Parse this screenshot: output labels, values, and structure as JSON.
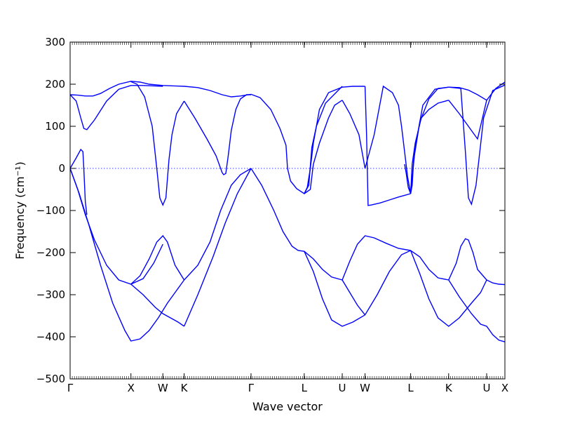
{
  "chart_data": {
    "type": "line",
    "title": "",
    "xlabel": "Wave vector",
    "ylabel": "Frequency (cm⁻¹)",
    "ylim": [
      -500,
      300
    ],
    "xlim": [
      0,
      14.3
    ],
    "grid": false,
    "legend": "none",
    "colors": {
      "series": "#0000ff",
      "axes": "#000000",
      "zero_line": "#0000ff"
    },
    "y_ticks": [
      300,
      200,
      100,
      0,
      -100,
      -200,
      -300,
      -400,
      -500
    ],
    "y_tick_labels": [
      "300",
      "200",
      "100",
      "0",
      "−100",
      "−200",
      "−300",
      "−400",
      "−500"
    ],
    "high_symmetry_points": [
      {
        "label": "Γ",
        "x": 0
      },
      {
        "label": "X",
        "x": 2.0
      },
      {
        "label": "W",
        "x": 3.05
      },
      {
        "label": "K",
        "x": 3.75
      },
      {
        "label": "Γ",
        "x": 5.95
      },
      {
        "label": "L",
        "x": 7.7
      },
      {
        "label": "U",
        "x": 8.95
      },
      {
        "label": "W",
        "x": 9.7
      },
      {
        "label": "L",
        "x": 11.2
      },
      {
        "label": "K",
        "x": 12.45
      },
      {
        "label": "U",
        "x": 13.7
      },
      {
        "label": "X",
        "x": 14.3
      }
    ],
    "zero_reference": 0,
    "series": [
      {
        "x": [
          0,
          0.25,
          0.5,
          0.75,
          1.0,
          1.3,
          1.6,
          2.0,
          2.3,
          2.6,
          3.05,
          3.4,
          3.75,
          4.2,
          4.6,
          5.0,
          5.3,
          5.6,
          5.95
        ],
        "values": [
          175,
          174,
          172,
          172,
          178,
          190,
          200,
          207,
          205,
          200,
          197,
          196,
          195,
          192,
          185,
          175,
          170,
          172,
          176
        ]
      },
      {
        "x": [
          0,
          0.2,
          0.35,
          0.45,
          0.55,
          0.8,
          1.2,
          1.6,
          2.0,
          2.4,
          2.75,
          3.05
        ],
        "values": [
          175,
          160,
          120,
          95,
          92,
          115,
          160,
          188,
          197,
          197,
          196,
          195
        ]
      },
      {
        "x": [
          2.0,
          2.2,
          2.45,
          2.7,
          2.85,
          2.95,
          3.05,
          3.15,
          3.25,
          3.35,
          3.5,
          3.75
        ],
        "values": [
          206,
          200,
          170,
          100,
          0,
          -70,
          -87,
          -70,
          20,
          80,
          130,
          160
        ]
      },
      {
        "x": [
          3.75,
          4.1,
          4.5,
          4.8,
          4.95,
          5.0,
          5.05,
          5.12,
          5.2,
          5.3,
          5.45,
          5.6,
          5.8,
          5.95
        ],
        "values": [
          160,
          120,
          70,
          30,
          0,
          -10,
          -15,
          -12,
          30,
          90,
          140,
          165,
          175,
          175
        ]
      },
      {
        "x": [
          0,
          0.2,
          0.35,
          0.42,
          0.45,
          0.5,
          0.55
        ],
        "values": [
          0,
          25,
          45,
          40,
          0,
          -80,
          -110
        ]
      },
      {
        "x": [
          0,
          0.25,
          0.5,
          0.8,
          1.2,
          1.6,
          2.0,
          2.4,
          2.75,
          3.05
        ],
        "values": [
          0,
          -50,
          -110,
          -170,
          -230,
          -265,
          -275,
          -262,
          -225,
          -180
        ]
      },
      {
        "x": [
          0,
          0.3,
          0.6,
          1.0,
          1.4,
          1.8,
          2.0,
          2.3,
          2.6,
          2.9,
          3.2,
          3.5,
          3.75
        ],
        "values": [
          0,
          -60,
          -130,
          -230,
          -320,
          -385,
          -410,
          -405,
          -385,
          -355,
          -320,
          -290,
          -265
        ]
      },
      {
        "x": [
          2.0,
          2.4,
          2.8,
          3.05,
          3.3,
          3.55,
          3.75
        ],
        "values": [
          -275,
          -300,
          -330,
          -345,
          -355,
          -365,
          -375
        ]
      },
      {
        "x": [
          2.0,
          2.3,
          2.6,
          2.85,
          3.05,
          3.2,
          3.45,
          3.75
        ],
        "values": [
          -275,
          -255,
          -215,
          -175,
          -160,
          -175,
          -230,
          -265
        ]
      },
      {
        "x": [
          3.75,
          4.2,
          4.7,
          5.1,
          5.5,
          5.95
        ],
        "values": [
          -375,
          -300,
          -210,
          -130,
          -60,
          0
        ]
      },
      {
        "x": [
          3.75,
          4.2,
          4.6,
          4.95,
          5.3,
          5.6,
          5.95
        ],
        "values": [
          -265,
          -230,
          -175,
          -100,
          -40,
          -15,
          0
        ]
      },
      {
        "x": [
          5.95,
          6.3,
          6.7,
          7.0,
          7.3,
          7.5,
          7.7,
          8.0,
          8.3,
          8.6,
          8.95
        ],
        "values": [
          0,
          -40,
          -100,
          -150,
          -185,
          -195,
          -197,
          -215,
          -240,
          -258,
          -265
        ]
      },
      {
        "x": [
          7.7,
          8.0,
          8.3,
          8.6,
          8.95,
          9.3,
          9.7
        ],
        "values": [
          -197,
          -245,
          -310,
          -360,
          -375,
          -365,
          -348
        ]
      },
      {
        "x": [
          8.95,
          9.2,
          9.45,
          9.7
        ],
        "values": [
          -265,
          -295,
          -325,
          -348
        ]
      },
      {
        "x": [
          8.95,
          9.2,
          9.45,
          9.7,
          10.0,
          10.4,
          10.8,
          11.2
        ],
        "values": [
          -265,
          -220,
          -180,
          -160,
          -165,
          -178,
          -190,
          -195
        ]
      },
      {
        "x": [
          9.7,
          10.1,
          10.5,
          10.9,
          11.2,
          11.5,
          11.8,
          12.1,
          12.45
        ],
        "values": [
          -348,
          -300,
          -245,
          -205,
          -195,
          -210,
          -240,
          -260,
          -265
        ]
      },
      {
        "x": [
          11.2,
          11.5,
          11.8,
          12.1,
          12.45,
          12.8,
          13.2,
          13.5,
          13.7
        ],
        "values": [
          -195,
          -250,
          -310,
          -355,
          -375,
          -355,
          -320,
          -295,
          -265
        ]
      },
      {
        "x": [
          12.45,
          12.7,
          12.85,
          13.0,
          13.1,
          13.25,
          13.4,
          13.7
        ],
        "values": [
          -265,
          -225,
          -185,
          -167,
          -170,
          -200,
          -240,
          -265
        ]
      },
      {
        "x": [
          12.45,
          12.8,
          13.2,
          13.5,
          13.7,
          13.9,
          14.1,
          14.3
        ],
        "values": [
          -265,
          -305,
          -345,
          -370,
          -375,
          -395,
          -408,
          -412
        ]
      },
      {
        "x": [
          13.7,
          13.9,
          14.1,
          14.3
        ],
        "values": [
          -265,
          -272,
          -275,
          -276
        ]
      },
      {
        "x": [
          5.95,
          6.25,
          6.6,
          6.9,
          7.1,
          7.15,
          7.25,
          7.45,
          7.7,
          7.85,
          7.95,
          8.1,
          8.4,
          8.95
        ],
        "values": [
          176,
          168,
          140,
          95,
          55,
          0,
          -30,
          -48,
          -60,
          -40,
          50,
          100,
          155,
          195
        ]
      },
      {
        "x": [
          7.7,
          7.9,
          8.0,
          8.2,
          8.5,
          8.7,
          8.95
        ],
        "values": [
          -60,
          -50,
          10,
          60,
          120,
          150,
          162
        ]
      },
      {
        "x": [
          8.95,
          9.2,
          9.5,
          9.7,
          10.0,
          10.3,
          10.6,
          10.8,
          10.9,
          11.0,
          11.1,
          11.2
        ],
        "values": [
          162,
          130,
          80,
          0,
          80,
          195,
          180,
          150,
          100,
          40,
          -20,
          -60
        ]
      },
      {
        "x": [
          7.7,
          7.8,
          7.9,
          8.0,
          8.2,
          8.5,
          8.95,
          9.3,
          9.7
        ],
        "values": [
          -60,
          -45,
          0,
          60,
          140,
          180,
          193,
          195,
          195
        ]
      },
      {
        "x": [
          9.7,
          9.75,
          9.8,
          9.9,
          10.2,
          10.5,
          10.8,
          11.0,
          11.2
        ],
        "values": [
          195,
          80,
          -88,
          -87,
          -82,
          -75,
          -68,
          -64,
          -60
        ]
      },
      {
        "x": [
          11.2,
          11.25,
          11.3,
          11.5,
          11.8,
          12.1,
          12.45,
          12.8,
          13.1,
          13.4,
          13.7,
          14.0,
          14.3
        ],
        "values": [
          -60,
          -40,
          20,
          110,
          165,
          190,
          193,
          192,
          186,
          175,
          162,
          190,
          205
        ]
      },
      {
        "x": [
          11.2,
          11.25,
          11.35,
          11.55,
          11.8,
          12.1,
          12.45
        ],
        "values": [
          -60,
          10,
          60,
          120,
          140,
          155,
          162
        ]
      },
      {
        "x": [
          11.2,
          11.35,
          11.6,
          12.0,
          12.45,
          12.85,
          13.0,
          13.1,
          13.2,
          13.35,
          13.6,
          13.9,
          14.3
        ],
        "values": [
          -60,
          50,
          150,
          188,
          193,
          190,
          40,
          -70,
          -85,
          -40,
          120,
          185,
          198
        ]
      },
      {
        "x": [
          12.45,
          12.8,
          13.1,
          13.4,
          13.7
        ],
        "values": [
          162,
          130,
          100,
          70,
          162
        ]
      },
      {
        "x": [
          11.2,
          11.12,
          11.05,
          11.0
        ],
        "values": [
          -60,
          -45,
          -10,
          10
        ]
      }
    ]
  }
}
